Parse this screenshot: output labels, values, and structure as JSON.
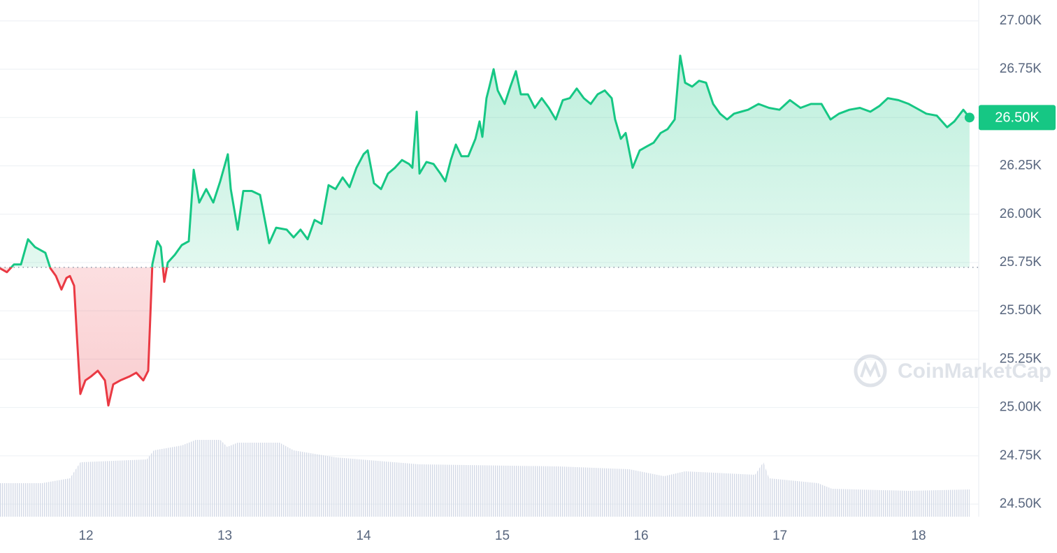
{
  "chart_data": {
    "type": "line",
    "x": [
      11.38,
      11.43,
      11.481,
      11.531,
      11.582,
      11.632,
      11.707,
      11.743,
      11.783,
      11.823,
      11.859,
      11.884,
      11.914,
      11.934,
      11.959,
      11.995,
      12.035,
      12.085,
      12.136,
      12.161,
      12.196,
      12.247,
      12.312,
      12.362,
      12.413,
      12.448,
      12.478,
      12.514,
      12.539,
      12.564,
      12.589,
      12.64,
      12.69,
      12.74,
      12.776,
      12.816,
      12.866,
      12.917,
      12.967,
      13.022,
      13.043,
      13.093,
      13.133,
      13.194,
      13.254,
      13.294,
      13.32,
      13.37,
      13.446,
      13.496,
      13.546,
      13.597,
      13.647,
      13.697,
      13.748,
      13.798,
      13.849,
      13.899,
      13.949,
      14.0,
      14.03,
      14.075,
      14.126,
      14.176,
      14.226,
      14.277,
      14.327,
      14.352,
      14.383,
      14.403,
      14.453,
      14.504,
      14.554,
      14.589,
      14.629,
      14.665,
      14.705,
      14.755,
      14.806,
      14.836,
      14.856,
      14.886,
      14.907,
      14.937,
      14.967,
      15.017,
      15.058,
      15.098,
      15.133,
      15.184,
      15.234,
      15.284,
      15.335,
      15.385,
      15.436,
      15.486,
      15.536,
      15.587,
      15.637,
      15.687,
      15.738,
      15.788,
      15.813,
      15.854,
      15.889,
      15.939,
      15.99,
      16.04,
      16.091,
      16.141,
      16.191,
      16.242,
      16.282,
      16.317,
      16.368,
      16.418,
      16.468,
      16.519,
      16.569,
      16.62,
      16.67,
      16.72,
      16.771,
      16.846,
      16.922,
      16.997,
      17.073,
      17.149,
      17.224,
      17.3,
      17.365,
      17.426,
      17.501,
      17.577,
      17.652,
      17.718,
      17.778,
      17.854,
      17.929,
      17.98,
      18.055,
      18.131,
      18.206,
      18.257,
      18.322,
      18.367
    ],
    "series": [
      {
        "color": "#16c784",
        "down_color": "#ea3943",
        "values": [
          25720,
          25700,
          25740,
          25740,
          25870,
          25830,
          25800,
          25720,
          25680,
          25610,
          25670,
          25680,
          25630,
          25370,
          25070,
          25140,
          25160,
          25190,
          25140,
          25010,
          25120,
          25140,
          25160,
          25180,
          25140,
          25190,
          25740,
          25860,
          25830,
          25650,
          25750,
          25790,
          25840,
          25860,
          26230,
          26060,
          26130,
          26060,
          26170,
          26310,
          26130,
          25920,
          26120,
          26120,
          26100,
          25950,
          25850,
          25930,
          25920,
          25880,
          25920,
          25870,
          25970,
          25950,
          26150,
          26130,
          26190,
          26140,
          26240,
          26310,
          26330,
          26160,
          26130,
          26210,
          26240,
          26280,
          26260,
          26240,
          26530,
          26210,
          26270,
          26260,
          26210,
          26170,
          26280,
          26360,
          26300,
          26300,
          26390,
          26480,
          26400,
          26600,
          26660,
          26750,
          26640,
          26570,
          26660,
          26740,
          26620,
          26620,
          26550,
          26600,
          26550,
          26490,
          26590,
          26600,
          26650,
          26600,
          26570,
          26620,
          26640,
          26600,
          26490,
          26390,
          26420,
          26240,
          26330,
          26350,
          26370,
          26420,
          26440,
          26490,
          26820,
          26680,
          26660,
          26690,
          26680,
          26570,
          26520,
          26490,
          26520,
          26530,
          26540,
          26570,
          26550,
          26540,
          26590,
          26550,
          26570,
          26570,
          26490,
          26520,
          26540,
          26550,
          26530,
          26560,
          26600,
          26590,
          26570,
          26550,
          26520,
          26510,
          26450,
          26480,
          26540,
          26500
        ]
      }
    ],
    "baseline": 25725,
    "current": {
      "value": 26500,
      "label": "26.50K"
    },
    "xlim": [
      11.38,
      18.433
    ],
    "xticks": [
      12,
      13,
      14,
      15,
      16,
      17,
      18
    ],
    "ylim": [
      24435,
      27108
    ],
    "yticks": [
      {
        "value": 24500,
        "label": "24.50K"
      },
      {
        "value": 24750,
        "label": "24.75K"
      },
      {
        "value": 25000,
        "label": "25.00K"
      },
      {
        "value": 25250,
        "label": "25.25K"
      },
      {
        "value": 25500,
        "label": "25.50K"
      },
      {
        "value": 25750,
        "label": "25.75K"
      },
      {
        "value": 26000,
        "label": "26.00K"
      },
      {
        "value": 26250,
        "label": "26.25K"
      },
      {
        "value": 26500,
        "label": "26.50K"
      },
      {
        "value": 26750,
        "label": "26.75K"
      },
      {
        "value": 27000,
        "label": "27.00K"
      }
    ],
    "grid": true,
    "watermark": "CoinMarketCap"
  }
}
